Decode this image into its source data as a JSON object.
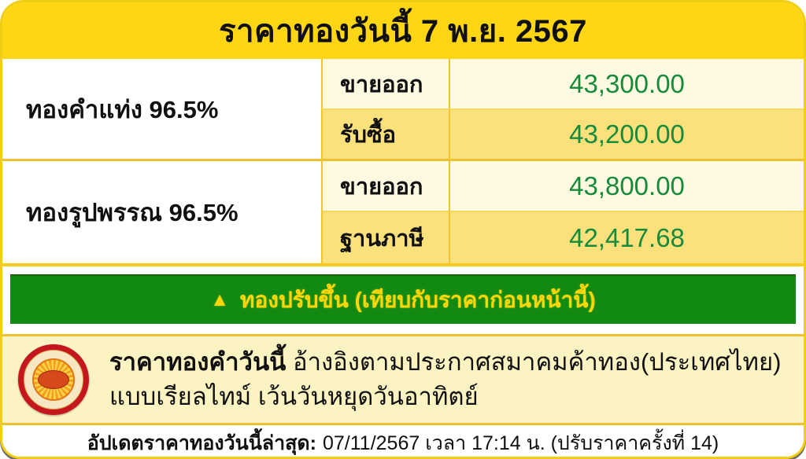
{
  "header": {
    "title": "ราคาทองวันนี้ 7 พ.ย. 2567"
  },
  "table": {
    "groups": [
      {
        "name": "ทองคำแท่ง 96.5%",
        "rows": [
          {
            "label": "ขายออก",
            "value": "43,300.00"
          },
          {
            "label": "รับซื้อ",
            "value": "43,200.00"
          }
        ]
      },
      {
        "name": "ทองรูปพรรณ 96.5%",
        "rows": [
          {
            "label": "ขายออก",
            "value": "43,800.00"
          },
          {
            "label": "ฐานภาษี",
            "value": "42,417.68"
          }
        ]
      }
    ]
  },
  "banner": {
    "arrow": "▲",
    "text": "ทองปรับขึ้น (เทียบกับราคาก่อนหน้านี้)"
  },
  "info": {
    "logo": "gold-traders-association-seal",
    "heading": "ราคาทองคำวันนี้",
    "body": "อ้างอิงตามประกาศสมาคมค้าทอง(ประเทศไทย) แบบเรียลไทม์ เว้นวันหยุดวันอาทิตย์"
  },
  "footer": {
    "label": "อัปเดตราคาทองวันนี้ล่าสุด:",
    "value": "07/11/2567 เวลา 17:14 น. (ปรับราคาครั้งที่ 14)"
  },
  "colors": {
    "header_yellow": "#FFD613",
    "row_cream": "#FEF9E1",
    "row_yellow": "#FBE17C",
    "divider_gold": "#F0C12E",
    "banner_green": "#128A12",
    "banner_text_yellow": "#FFD60A",
    "price_green": "#178A3B",
    "info_bg": "#FCF3C2",
    "logo_red": "#C4161C"
  }
}
